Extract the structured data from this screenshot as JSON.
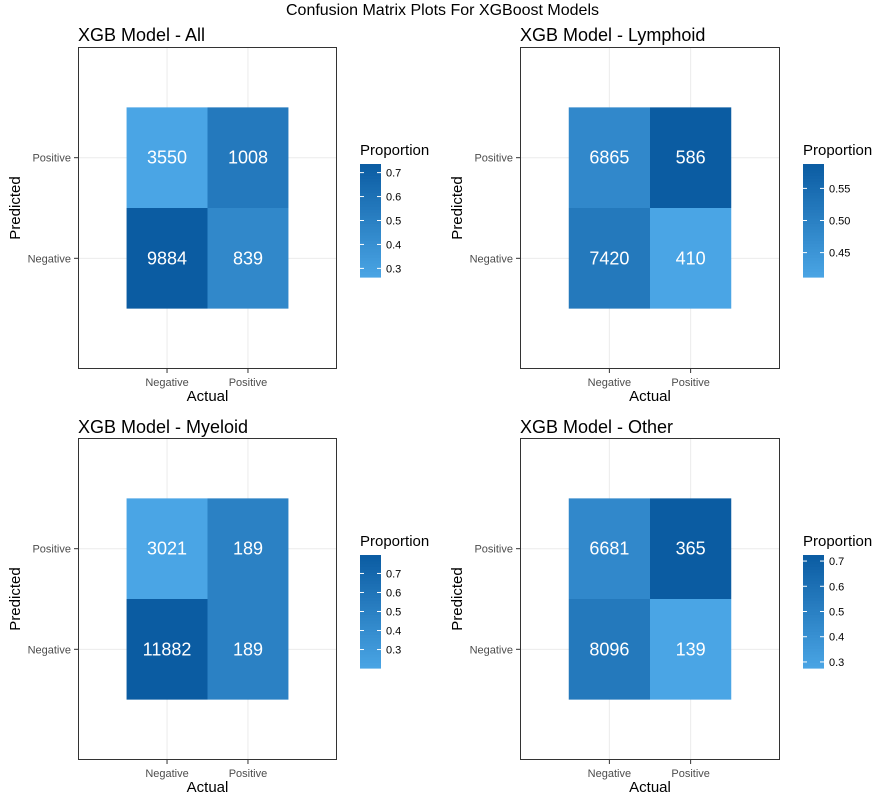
{
  "title": "Confusion Matrix Plots For XGBoost Models",
  "colors": {
    "low": "#4aa5e5",
    "high": "#0b5ca2",
    "cell_text": "#ffffff",
    "grid": "#ebebeb",
    "border": "#333333"
  },
  "chart_data": [
    {
      "type": "heatmap",
      "title": "XGB Model - All",
      "xlabel": "Actual",
      "ylabel": "Predicted",
      "x_categories": [
        "Negative",
        "Positive"
      ],
      "y_categories": [
        "Negative",
        "Positive"
      ],
      "cells": [
        {
          "actual": "Negative",
          "predicted": "Positive",
          "count": 3550,
          "proportion": 0.264
        },
        {
          "actual": "Positive",
          "predicted": "Positive",
          "count": 1008,
          "proportion": 0.546
        },
        {
          "actual": "Negative",
          "predicted": "Negative",
          "count": 9884,
          "proportion": 0.736
        },
        {
          "actual": "Positive",
          "predicted": "Negative",
          "count": 839,
          "proportion": 0.454
        }
      ],
      "legend": {
        "title": "Proportion",
        "ticks": [
          "0.3",
          "0.4",
          "0.5",
          "0.6",
          "0.7"
        ],
        "tick_values": [
          0.3,
          0.4,
          0.5,
          0.6,
          0.7
        ],
        "range": [
          0.264,
          0.736
        ]
      }
    },
    {
      "type": "heatmap",
      "title": "XGB Model - Lymphoid",
      "xlabel": "Actual",
      "ylabel": "Predicted",
      "x_categories": [
        "Negative",
        "Positive"
      ],
      "y_categories": [
        "Negative",
        "Positive"
      ],
      "cells": [
        {
          "actual": "Negative",
          "predicted": "Positive",
          "count": 6865,
          "proportion": 0.481
        },
        {
          "actual": "Positive",
          "predicted": "Positive",
          "count": 586,
          "proportion": 0.588
        },
        {
          "actual": "Negative",
          "predicted": "Negative",
          "count": 7420,
          "proportion": 0.519
        },
        {
          "actual": "Positive",
          "predicted": "Negative",
          "count": 410,
          "proportion": 0.412
        }
      ],
      "legend": {
        "title": "Proportion",
        "ticks": [
          "0.45",
          "0.50",
          "0.55"
        ],
        "tick_values": [
          0.45,
          0.5,
          0.55
        ],
        "range": [
          0.412,
          0.588
        ]
      }
    },
    {
      "type": "heatmap",
      "title": "XGB Model - Myeloid",
      "xlabel": "Actual",
      "ylabel": "Predicted",
      "x_categories": [
        "Negative",
        "Positive"
      ],
      "y_categories": [
        "Negative",
        "Positive"
      ],
      "cells": [
        {
          "actual": "Negative",
          "predicted": "Positive",
          "count": 3021,
          "proportion": 0.203
        },
        {
          "actual": "Positive",
          "predicted": "Positive",
          "count": 189,
          "proportion": 0.5
        },
        {
          "actual": "Negative",
          "predicted": "Negative",
          "count": 11882,
          "proportion": 0.797
        },
        {
          "actual": "Positive",
          "predicted": "Negative",
          "count": 189,
          "proportion": 0.5
        }
      ],
      "legend": {
        "title": "Proportion",
        "ticks": [
          "0.3",
          "0.4",
          "0.5",
          "0.6",
          "0.7"
        ],
        "tick_values": [
          0.3,
          0.4,
          0.5,
          0.6,
          0.7
        ],
        "range": [
          0.203,
          0.797
        ]
      }
    },
    {
      "type": "heatmap",
      "title": "XGB Model - Other",
      "xlabel": "Actual",
      "ylabel": "Predicted",
      "x_categories": [
        "Negative",
        "Positive"
      ],
      "y_categories": [
        "Negative",
        "Positive"
      ],
      "cells": [
        {
          "actual": "Negative",
          "predicted": "Positive",
          "count": 6681,
          "proportion": 0.452
        },
        {
          "actual": "Positive",
          "predicted": "Positive",
          "count": 365,
          "proportion": 0.724
        },
        {
          "actual": "Negative",
          "predicted": "Negative",
          "count": 8096,
          "proportion": 0.548
        },
        {
          "actual": "Positive",
          "predicted": "Negative",
          "count": 139,
          "proportion": 0.276
        }
      ],
      "legend": {
        "title": "Proportion",
        "ticks": [
          "0.3",
          "0.4",
          "0.5",
          "0.6",
          "0.7"
        ],
        "tick_values": [
          0.3,
          0.4,
          0.5,
          0.6,
          0.7
        ],
        "range": [
          0.276,
          0.724
        ]
      }
    }
  ]
}
